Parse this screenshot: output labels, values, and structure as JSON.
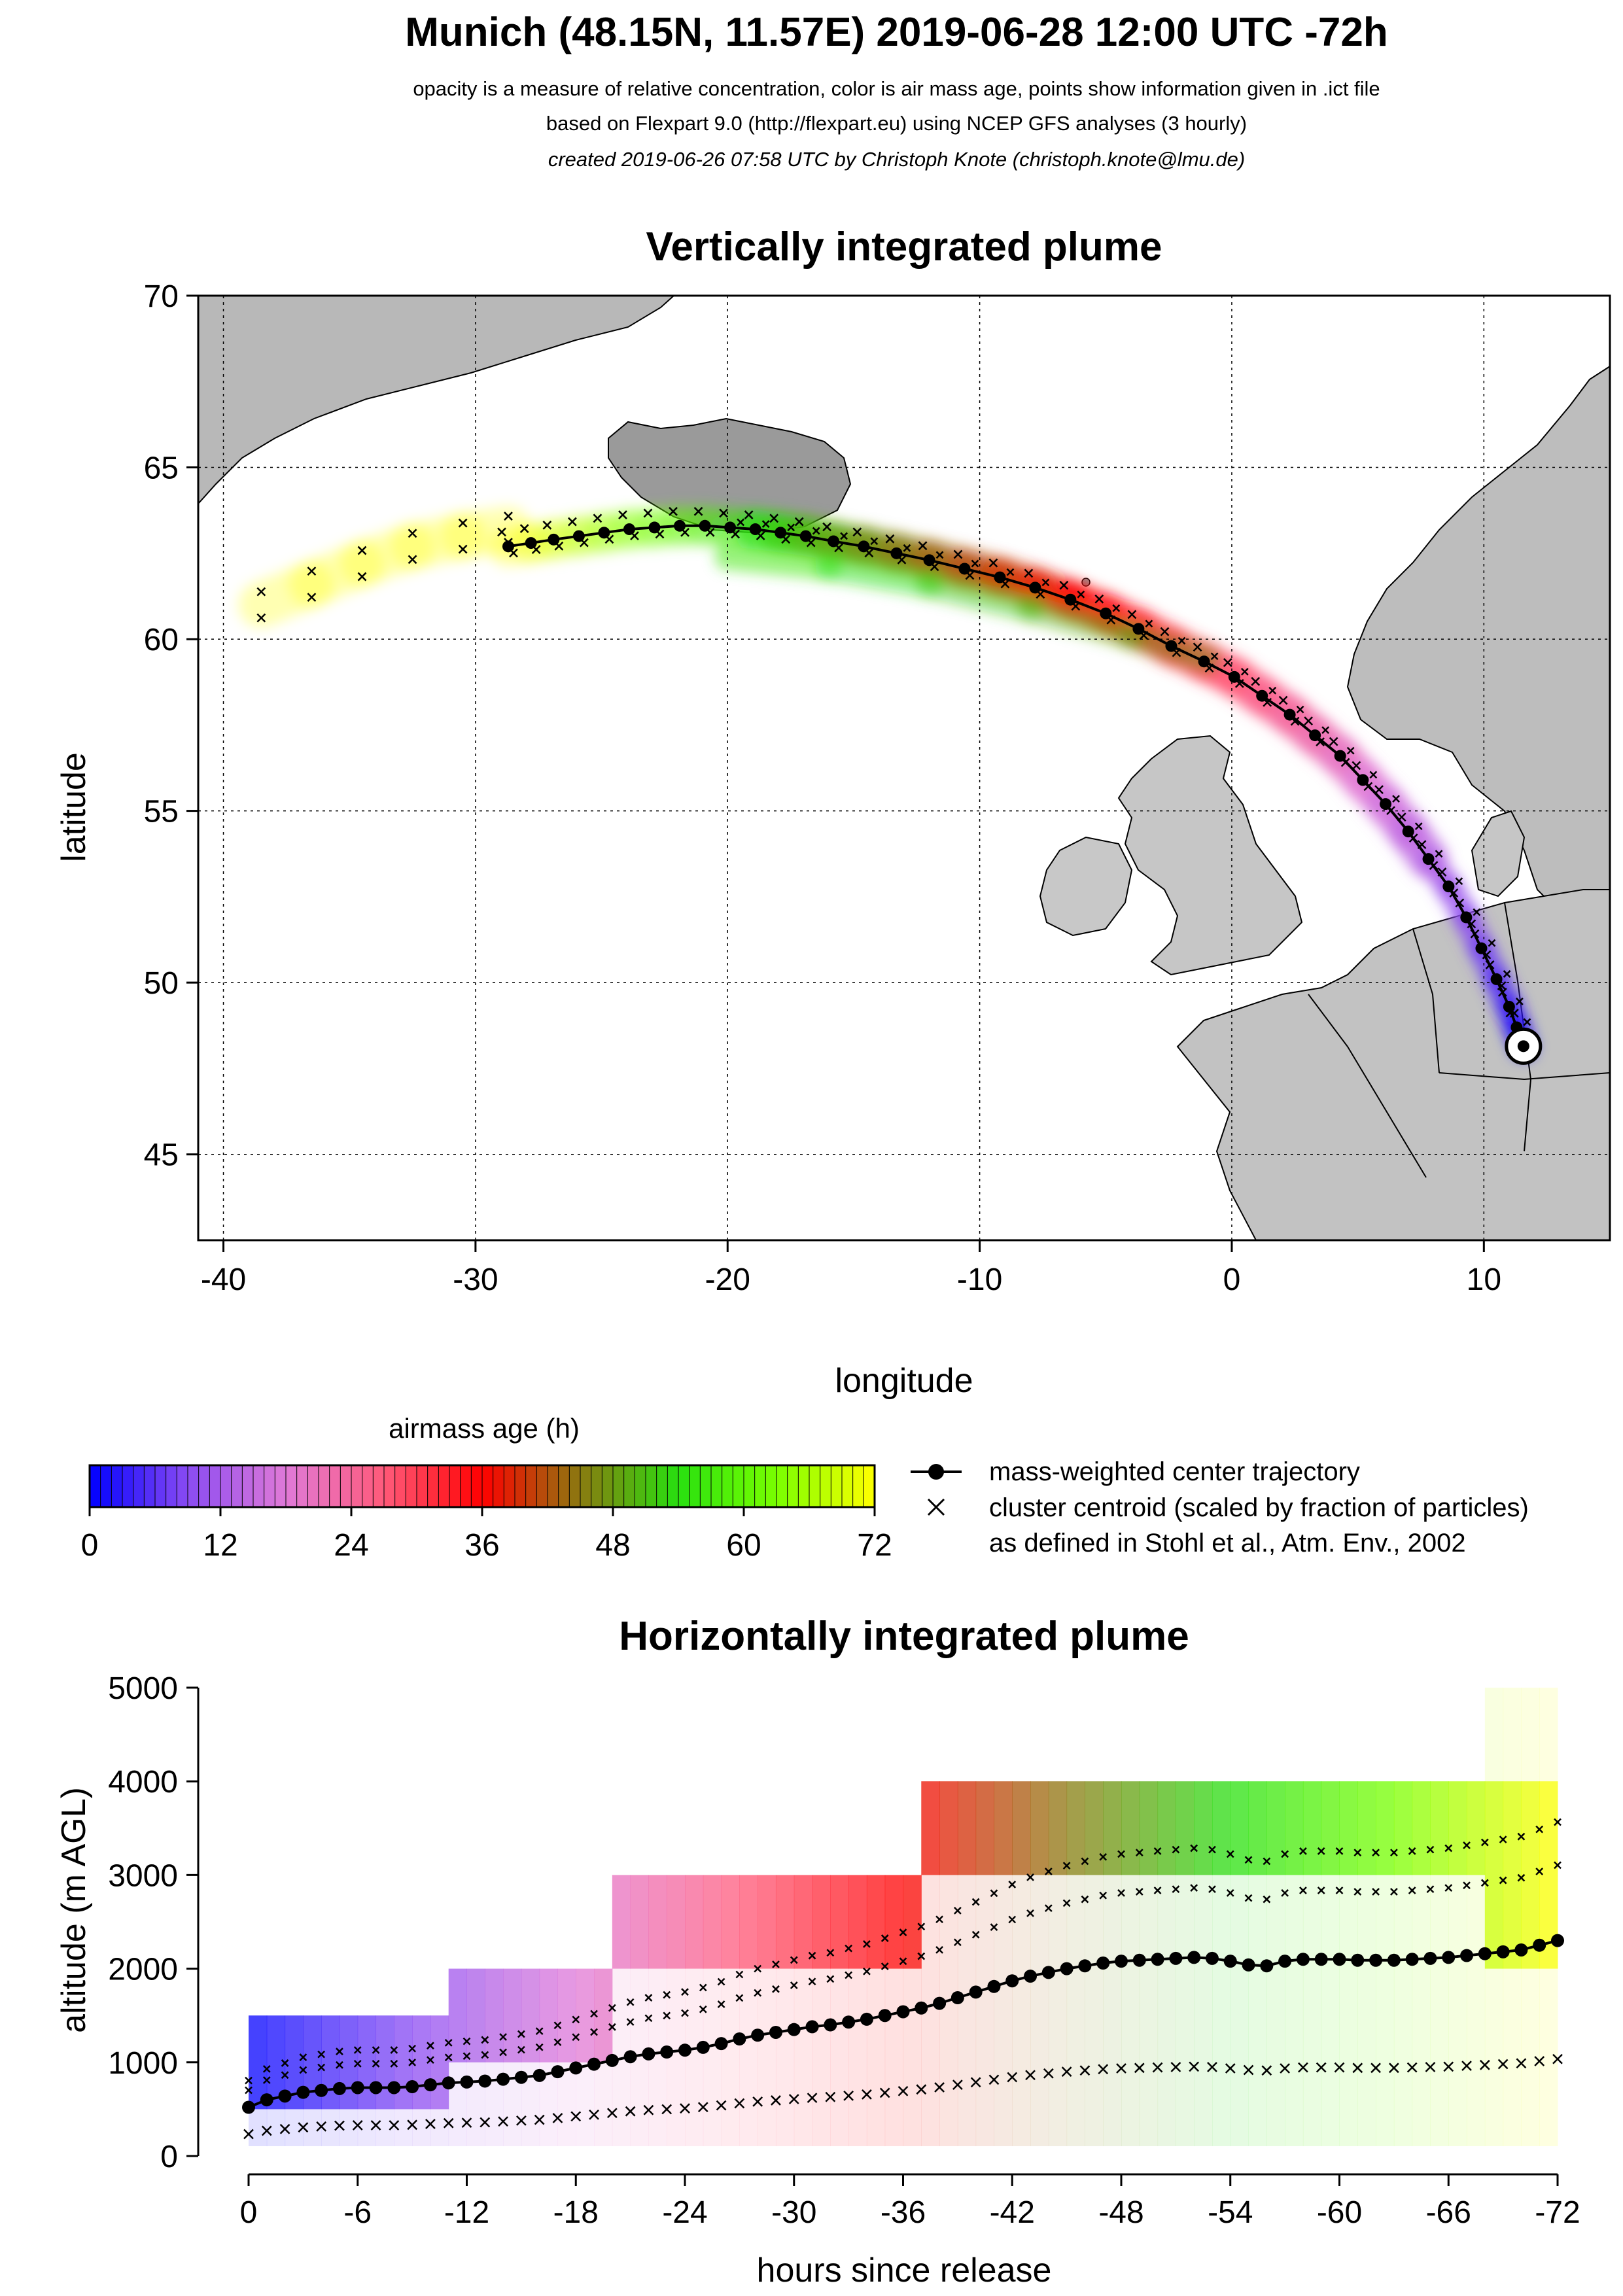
{
  "header": {
    "title": "Munich (48.15N, 11.57E) 2019-06-28 12:00 UTC -72h",
    "subtitle_1": "opacity is a measure of relative concentration, color is air mass age, points show information given in .ict file",
    "subtitle_2": "based on Flexpart 9.0 (http://flexpart.eu) using NCEP GFS analyses (3 hourly)",
    "subtitle_3": "created 2019-06-26 07:58 UTC by Christoph Knote (christoph.knote@lmu.de)"
  },
  "colors": {
    "land": "#c4c4c4",
    "grid": "#000000",
    "age_scale": [
      "#0000ff",
      "#8a4bf2",
      "#e07ad8",
      "#ff5a7a",
      "#ff0000",
      "#8a7a10",
      "#28e010",
      "#7aff00",
      "#ffff00"
    ]
  },
  "chart_data": [
    {
      "type": "scatter",
      "title": "Vertically integrated plume",
      "xlabel": "longitude",
      "ylabel": "latitude",
      "xlim": [
        -41,
        15
      ],
      "ylim": [
        42.5,
        70
      ],
      "xticks": [
        -40,
        -30,
        -20,
        -10,
        0,
        10
      ],
      "yticks": [
        45,
        50,
        55,
        60,
        65,
        70
      ],
      "grid": true,
      "release_point": {
        "lon": 11.57,
        "lat": 48.15
      },
      "center_trajectory": {
        "lon": [
          -28.7,
          -27.8,
          -26.9,
          -25.9,
          -24.9,
          -23.9,
          -22.9,
          -21.9,
          -20.9,
          -19.9,
          -18.9,
          -17.9,
          -16.9,
          -15.8,
          -14.6,
          -13.3,
          -12.0,
          -10.6,
          -9.2,
          -7.8,
          -6.4,
          -5.0,
          -3.7,
          -2.4,
          -1.1,
          0.1,
          1.2,
          2.3,
          3.3,
          4.3,
          5.2,
          6.1,
          7.0,
          7.8,
          8.6,
          9.3,
          9.9,
          10.5,
          11.0,
          11.3,
          11.57
        ],
        "lat": [
          62.7,
          62.8,
          62.9,
          63.0,
          63.1,
          63.2,
          63.25,
          63.3,
          63.3,
          63.25,
          63.2,
          63.1,
          63.0,
          62.85,
          62.7,
          62.5,
          62.3,
          62.05,
          61.8,
          61.5,
          61.15,
          60.75,
          60.3,
          59.8,
          59.35,
          58.9,
          58.35,
          57.8,
          57.2,
          56.6,
          55.9,
          55.2,
          54.4,
          53.6,
          52.8,
          51.9,
          51.0,
          50.1,
          49.3,
          48.7,
          48.15
        ]
      },
      "plume_colors_by_age": [
        "purple",
        "pink",
        "red",
        "brown",
        "green",
        "yellow-green",
        "yellow"
      ]
    },
    {
      "type": "colorbar",
      "title": "airmass age (h)",
      "ticks": [
        0,
        12,
        24,
        36,
        48,
        60,
        72
      ],
      "range": [
        0,
        72
      ]
    },
    {
      "type": "scatter",
      "title": "Horizontally integrated plume",
      "xlabel": "hours since release",
      "ylabel": "altitude (m AGL)",
      "xlim": [
        0,
        -72
      ],
      "ylim": [
        0,
        5000
      ],
      "xticks": [
        0,
        -6,
        -12,
        -18,
        -24,
        -30,
        -36,
        -42,
        -48,
        -54,
        -60,
        -66,
        -72
      ],
      "xtick_labels": [
        "0",
        "-6",
        "-12",
        "-18",
        "-24",
        "-30",
        "-36",
        "-42",
        "-48",
        "-54",
        "-60",
        "-66",
        "-72"
      ],
      "yticks": [
        0,
        1000,
        2000,
        3000,
        4000,
        5000
      ],
      "center_trajectory": {
        "hours": [
          0,
          -1,
          -2,
          -3,
          -4,
          -5,
          -6,
          -7,
          -8,
          -9,
          -10,
          -11,
          -12,
          -13,
          -14,
          -15,
          -16,
          -17,
          -18,
          -19,
          -20,
          -21,
          -22,
          -23,
          -24,
          -25,
          -26,
          -27,
          -28,
          -29,
          -30,
          -31,
          -32,
          -33,
          -34,
          -35,
          -36,
          -37,
          -38,
          -39,
          -40,
          -41,
          -42,
          -43,
          -44,
          -45,
          -46,
          -47,
          -48,
          -49,
          -50,
          -51,
          -52,
          -53,
          -54,
          -55,
          -56,
          -57,
          -58,
          -59,
          -60,
          -61,
          -62,
          -63,
          -64,
          -65,
          -66,
          -67,
          -68,
          -69,
          -70,
          -71,
          -72
        ],
        "altitude": [
          520,
          600,
          640,
          680,
          700,
          720,
          730,
          730,
          730,
          740,
          760,
          780,
          790,
          800,
          820,
          840,
          860,
          900,
          940,
          980,
          1020,
          1060,
          1090,
          1110,
          1130,
          1160,
          1200,
          1250,
          1290,
          1320,
          1350,
          1380,
          1400,
          1430,
          1460,
          1500,
          1540,
          1580,
          1630,
          1690,
          1750,
          1810,
          1870,
          1920,
          1960,
          2000,
          2030,
          2060,
          2080,
          2090,
          2100,
          2110,
          2120,
          2110,
          2080,
          2040,
          2030,
          2080,
          2100,
          2100,
          2100,
          2090,
          2090,
          2090,
          2100,
          2110,
          2120,
          2140,
          2160,
          2180,
          2200,
          2250,
          2300
        ]
      },
      "band_ranges": [
        {
          "from_h": 0,
          "to_h": -11,
          "min": 0,
          "max": 1500
        },
        {
          "from_h": -11,
          "to_h": -20,
          "min": 0,
          "max": 2000
        },
        {
          "from_h": -20,
          "to_h": -37,
          "min": 0,
          "max": 3000
        },
        {
          "from_h": -37,
          "to_h": -68,
          "min": 0,
          "max": 4000
        },
        {
          "from_h": -68,
          "to_h": -72,
          "min": 0,
          "max": 5000
        }
      ]
    }
  ],
  "legend": {
    "line_label": "mass-weighted center trajectory",
    "cross_label_1": "cluster centroid (scaled by fraction of particles)",
    "cross_label_2": "as defined in Stohl et al., Atm. Env., 2002"
  }
}
